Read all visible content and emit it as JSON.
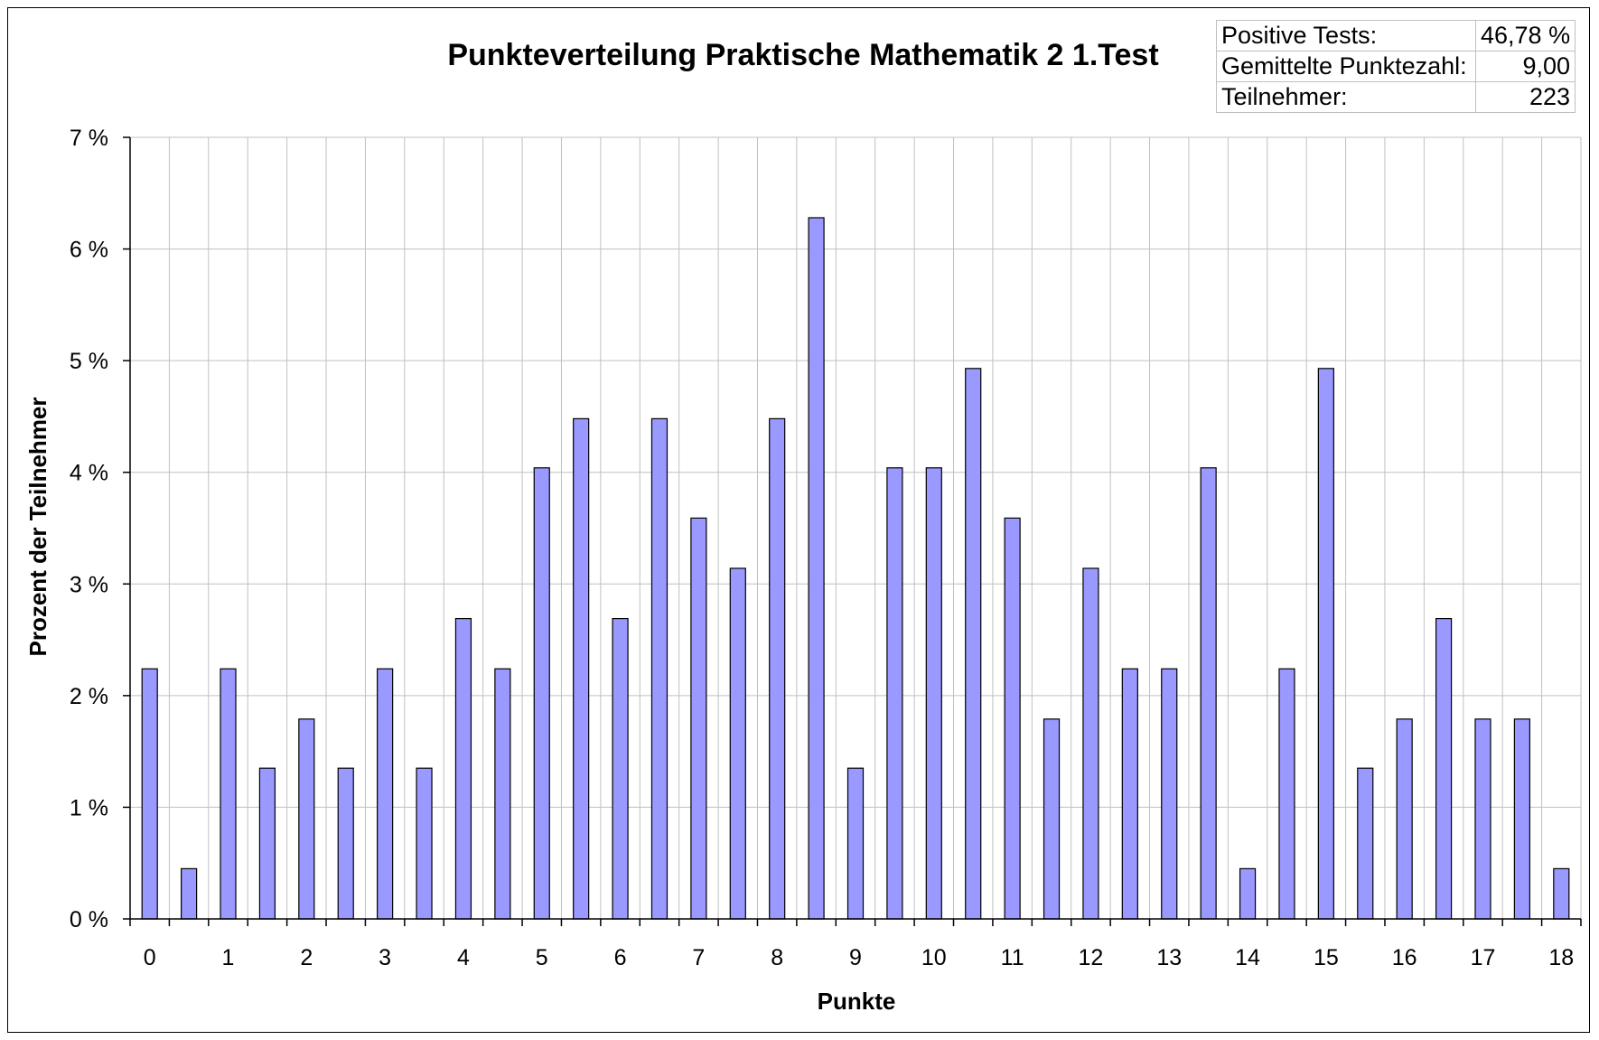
{
  "chart_data": {
    "type": "bar",
    "title": "Punkteverteilung Praktische Mathematik 2 1.Test",
    "xlabel": "Punkte",
    "ylabel": "Prozent der Teilnehmer",
    "x_ticks": [
      "0",
      "1",
      "2",
      "3",
      "4",
      "5",
      "6",
      "7",
      "8",
      "9",
      "10",
      "11",
      "12",
      "13",
      "14",
      "15",
      "16",
      "17",
      "18"
    ],
    "categories": [
      "0",
      "0,5",
      "1",
      "1,5",
      "2",
      "2,5",
      "3",
      "3,5",
      "4",
      "4,5",
      "5",
      "5,5",
      "6",
      "6,5",
      "7",
      "7,5",
      "8",
      "8,5",
      "9",
      "9,5",
      "10",
      "10,5",
      "11",
      "11,5",
      "12",
      "12,5",
      "13",
      "13,5",
      "14",
      "14,5",
      "15",
      "15,5",
      "16",
      "16,5",
      "17",
      "17,5",
      "18"
    ],
    "values": [
      2.24,
      0.45,
      2.24,
      1.35,
      1.79,
      1.35,
      2.24,
      1.35,
      2.69,
      2.24,
      4.04,
      4.48,
      2.69,
      4.48,
      3.59,
      3.14,
      4.48,
      6.28,
      1.35,
      4.04,
      4.04,
      4.93,
      3.59,
      1.79,
      3.14,
      2.24,
      2.24,
      4.04,
      0.45,
      2.24,
      4.93,
      1.35,
      1.79,
      2.69,
      1.79,
      1.79,
      0.45
    ],
    "ylim": [
      0,
      7
    ],
    "y_ticks": [
      "0 %",
      "1 %",
      "2 %",
      "3 %",
      "4 %",
      "5 %",
      "6 %",
      "7 %"
    ],
    "grid": true,
    "colors": {
      "bar": "#9999ff",
      "bar_border": "#000000",
      "grid": "#c0c0c0"
    }
  },
  "stats": [
    {
      "label": "Positive Tests:",
      "value": "46,78 %"
    },
    {
      "label": "Gemittelte Punktezahl:",
      "value": "9,00"
    },
    {
      "label": "Teilnehmer:",
      "value": "223"
    }
  ]
}
